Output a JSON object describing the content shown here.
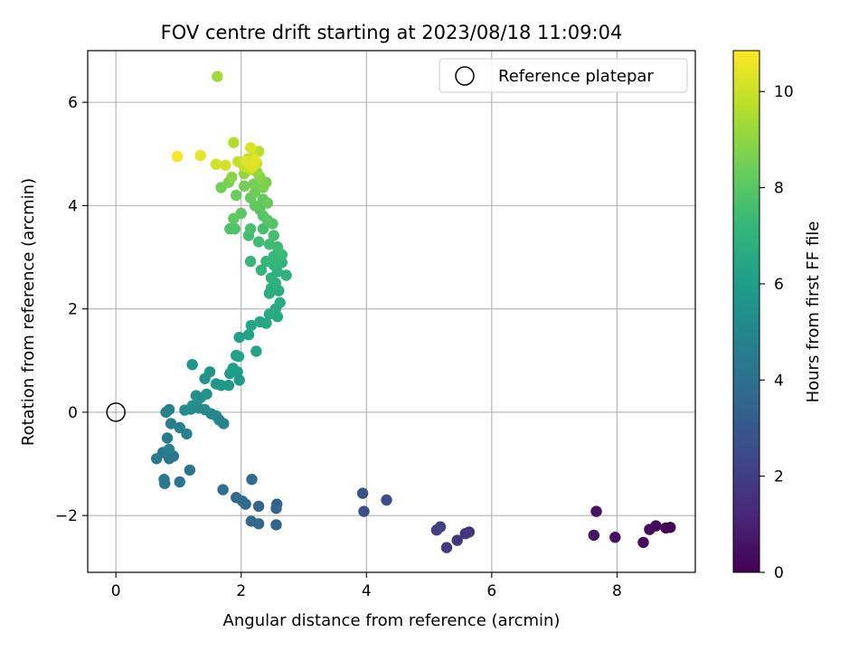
{
  "chart_data": {
    "type": "scatter",
    "title": "FOV centre drift starting at 2023/08/18 11:09:04",
    "xlabel": "Angular distance from reference (arcmin)",
    "ylabel": "Rotation from reference (arcmin)",
    "xlim": [
      -0.45,
      9.25
    ],
    "ylim": [
      -3.1,
      7.0
    ],
    "xticks": [
      0,
      2,
      4,
      6,
      8
    ],
    "yticks": [
      -2,
      0,
      2,
      4,
      6
    ],
    "xtick_labels": [
      "0",
      "2",
      "4",
      "6",
      "8"
    ],
    "ytick_labels": [
      "−2",
      "0",
      "2",
      "4",
      "6"
    ],
    "grid": true,
    "legend": {
      "position": "top-right",
      "label": "Reference platepar"
    },
    "reference": {
      "x": 0,
      "y": 0
    },
    "colorbar": {
      "label": "Hours from first FF file",
      "range": [
        0,
        10.85
      ],
      "ticks": [
        0,
        2,
        4,
        6,
        8,
        10
      ],
      "tick_labels": [
        "0",
        "2",
        "4",
        "6",
        "8",
        "10"
      ],
      "colormap": "viridis"
    },
    "colormap_stops": [
      "#440154",
      "#482878",
      "#3e4989",
      "#31688e",
      "#26828e",
      "#1f9e89",
      "#35b779",
      "#6ece58",
      "#b5de2b",
      "#fde725"
    ],
    "series": [
      {
        "name": "FOV centre",
        "points": [
          [
            8.85,
            -2.23,
            0.0
          ],
          [
            8.78,
            -2.24,
            0.1
          ],
          [
            8.62,
            -2.2,
            0.2
          ],
          [
            8.52,
            -2.27,
            0.3
          ],
          [
            8.42,
            -2.52,
            0.35
          ],
          [
            7.97,
            -2.42,
            0.45
          ],
          [
            7.67,
            -1.92,
            0.55
          ],
          [
            7.63,
            -2.38,
            0.6
          ],
          [
            5.64,
            -2.32,
            1.6
          ],
          [
            5.58,
            -2.35,
            1.7
          ],
          [
            5.45,
            -2.48,
            1.8
          ],
          [
            5.28,
            -2.62,
            1.9
          ],
          [
            5.18,
            -2.22,
            2.0
          ],
          [
            5.12,
            -2.28,
            2.1
          ],
          [
            4.32,
            -1.7,
            2.6
          ],
          [
            3.96,
            -1.92,
            2.7
          ],
          [
            3.94,
            -1.57,
            2.8
          ],
          [
            2.57,
            -1.78,
            3.4
          ],
          [
            2.56,
            -1.86,
            3.45
          ],
          [
            2.56,
            -2.18,
            3.5
          ],
          [
            2.28,
            -1.82,
            3.55
          ],
          [
            2.28,
            -2.16,
            3.6
          ],
          [
            2.16,
            -2.11,
            3.65
          ],
          [
            2.17,
            -1.3,
            3.7
          ],
          [
            2.07,
            -1.78,
            3.75
          ],
          [
            2.02,
            -1.72,
            3.8
          ],
          [
            1.92,
            -1.65,
            3.85
          ],
          [
            1.71,
            -1.5,
            3.9
          ],
          [
            1.18,
            -1.12,
            4.1
          ],
          [
            1.02,
            -1.35,
            4.2
          ],
          [
            0.92,
            -0.85,
            4.25
          ],
          [
            0.85,
            -0.9,
            4.3
          ],
          [
            0.78,
            -1.38,
            4.35
          ],
          [
            0.77,
            -1.3,
            4.4
          ],
          [
            0.75,
            -0.78,
            4.45
          ],
          [
            0.65,
            -0.9,
            4.5
          ],
          [
            0.82,
            -0.5,
            4.55
          ],
          [
            0.85,
            -0.72,
            4.6
          ],
          [
            0.88,
            -0.22,
            4.65
          ],
          [
            1.02,
            -0.3,
            4.7
          ],
          [
            1.13,
            -0.42,
            4.75
          ],
          [
            0.85,
            0.05,
            4.8
          ],
          [
            0.8,
            0.0,
            4.85
          ],
          [
            1.72,
            -0.22,
            4.9
          ],
          [
            1.65,
            -0.15,
            4.95
          ],
          [
            1.6,
            -0.07,
            5.0
          ],
          [
            1.52,
            -0.03,
            5.05
          ],
          [
            1.42,
            0.05,
            5.1
          ],
          [
            1.32,
            0.08,
            5.15
          ],
          [
            1.28,
            0.14,
            5.2
          ],
          [
            1.2,
            0.06,
            5.25
          ],
          [
            1.1,
            0.04,
            5.3
          ],
          [
            1.22,
            0.12,
            5.35
          ],
          [
            1.28,
            0.32,
            5.4
          ],
          [
            1.35,
            0.28,
            5.45
          ],
          [
            1.45,
            0.35,
            5.5
          ],
          [
            1.42,
            0.65,
            5.55
          ],
          [
            1.5,
            0.78,
            5.6
          ],
          [
            1.22,
            0.92,
            5.65
          ],
          [
            1.6,
            0.55,
            5.7
          ],
          [
            1.68,
            0.52,
            5.75
          ],
          [
            1.8,
            0.52,
            5.8
          ],
          [
            1.82,
            0.75,
            5.85
          ],
          [
            1.97,
            0.62,
            5.9
          ],
          [
            1.94,
            0.78,
            5.95
          ],
          [
            1.9,
            0.8,
            6.0
          ],
          [
            1.87,
            0.85,
            6.05
          ],
          [
            1.92,
            1.1,
            6.1
          ],
          [
            1.96,
            1.08,
            6.15
          ],
          [
            1.97,
            1.45,
            6.2
          ],
          [
            2.12,
            1.5,
            6.25
          ],
          [
            2.24,
            1.18,
            6.3
          ],
          [
            2.16,
            1.68,
            6.35
          ],
          [
            2.3,
            1.75,
            6.4
          ],
          [
            2.4,
            1.72,
            6.45
          ],
          [
            2.45,
            1.9,
            6.5
          ],
          [
            2.58,
            1.85,
            6.55
          ],
          [
            2.55,
            2.0,
            6.6
          ],
          [
            2.62,
            2.12,
            6.65
          ],
          [
            2.6,
            2.35,
            6.7
          ],
          [
            2.45,
            2.3,
            6.75
          ],
          [
            2.48,
            2.4,
            6.8
          ],
          [
            2.55,
            2.5,
            6.85
          ],
          [
            2.48,
            2.6,
            6.9
          ],
          [
            2.58,
            2.72,
            6.95
          ],
          [
            2.72,
            2.65,
            7.0
          ],
          [
            2.65,
            2.9,
            7.05
          ],
          [
            2.52,
            2.85,
            7.1
          ],
          [
            2.32,
            2.75,
            7.15
          ],
          [
            2.4,
            2.92,
            7.2
          ],
          [
            2.15,
            2.92,
            7.25
          ],
          [
            2.52,
            3.02,
            7.3
          ],
          [
            2.65,
            3.05,
            7.35
          ],
          [
            2.58,
            3.2,
            7.4
          ],
          [
            2.45,
            3.25,
            7.45
          ],
          [
            2.28,
            3.3,
            7.5
          ],
          [
            2.12,
            3.42,
            7.55
          ],
          [
            2.52,
            3.42,
            7.6
          ],
          [
            2.35,
            3.55,
            7.65
          ],
          [
            2.15,
            3.55,
            7.7
          ],
          [
            1.82,
            3.55,
            7.75
          ],
          [
            1.9,
            3.55,
            7.8
          ],
          [
            2.5,
            3.65,
            7.85
          ],
          [
            2.42,
            3.72,
            7.9
          ],
          [
            2.35,
            3.8,
            7.95
          ],
          [
            2.3,
            3.92,
            8.0
          ],
          [
            2.0,
            3.85,
            8.05
          ],
          [
            1.88,
            3.75,
            8.1
          ],
          [
            2.22,
            4.0,
            8.15
          ],
          [
            2.35,
            4.12,
            8.2
          ],
          [
            2.15,
            4.15,
            8.25
          ],
          [
            2.42,
            4.05,
            8.3
          ],
          [
            1.92,
            4.2,
            8.35
          ],
          [
            2.22,
            4.25,
            8.4
          ],
          [
            1.68,
            4.35,
            8.45
          ],
          [
            2.05,
            4.38,
            8.5
          ],
          [
            2.2,
            4.42,
            8.55
          ],
          [
            1.8,
            4.45,
            8.6
          ],
          [
            2.35,
            4.35,
            8.65
          ],
          [
            2.4,
            4.45,
            8.7
          ],
          [
            2.3,
            4.55,
            8.8
          ],
          [
            1.85,
            4.55,
            8.9
          ],
          [
            2.05,
            4.62,
            9.0
          ],
          [
            2.25,
            4.65,
            9.05
          ],
          [
            1.62,
            6.5,
            9.3
          ],
          [
            1.88,
            5.22,
            9.6
          ],
          [
            2.28,
            5.05,
            9.7
          ],
          [
            2.1,
            4.9,
            9.75
          ],
          [
            2.15,
            4.7,
            9.8
          ],
          [
            1.95,
            4.85,
            9.85
          ],
          [
            2.05,
            4.75,
            9.9
          ],
          [
            2.25,
            4.82,
            9.95
          ],
          [
            2.2,
            4.95,
            10.0
          ],
          [
            1.6,
            4.8,
            10.1
          ],
          [
            1.75,
            4.78,
            10.2
          ],
          [
            2.15,
            5.12,
            10.25
          ],
          [
            2.08,
            4.85,
            10.3
          ],
          [
            2.18,
            4.75,
            10.35
          ],
          [
            2.22,
            4.88,
            10.4
          ],
          [
            1.35,
            4.97,
            10.5
          ],
          [
            0.98,
            4.95,
            10.75
          ]
        ]
      }
    ]
  }
}
